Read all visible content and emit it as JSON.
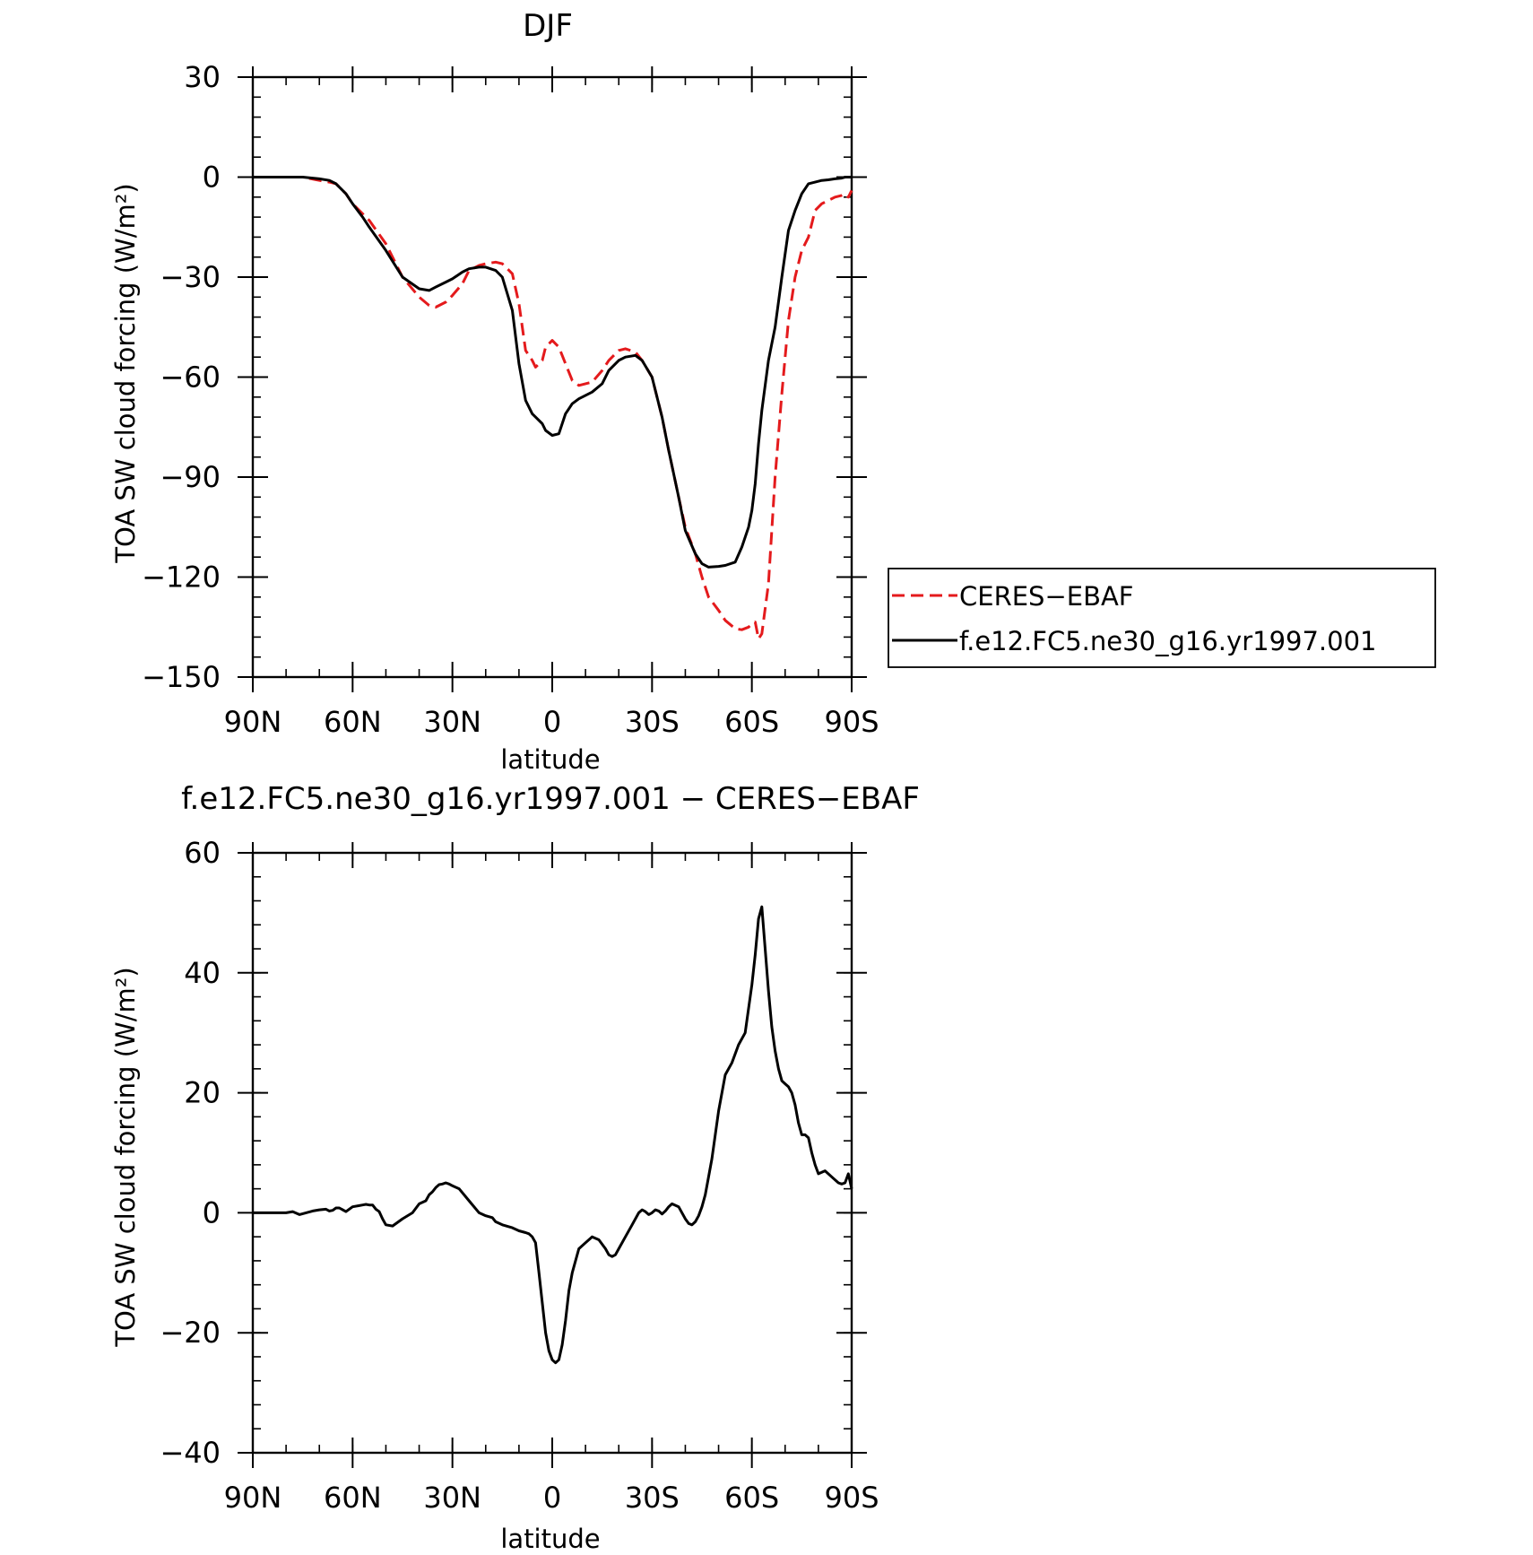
{
  "chart_data": [
    {
      "type": "line",
      "title": "DJF",
      "xlabel": "latitude",
      "ylabel": "TOA SW cloud forcing (W/m²)",
      "xlim": [
        90,
        -90
      ],
      "ylim": [
        -150,
        30
      ],
      "xticks": [
        90,
        60,
        30,
        0,
        -30,
        -60,
        -90
      ],
      "xticklabels": [
        "90N",
        "60N",
        "30N",
        "0",
        "30S",
        "60S",
        "90S"
      ],
      "yticks": [
        30,
        0,
        -30,
        -60,
        -90,
        -120,
        -150
      ],
      "yticklabels": [
        "30",
        "0",
        "−30",
        "−60",
        "−90",
        "−120",
        "−150"
      ],
      "legend": "right",
      "series": [
        {
          "name": "CERES−EBAF",
          "color": "#e41a1c",
          "dash": "dashed",
          "x": [
            90,
            85,
            80,
            75,
            70,
            67,
            65,
            62,
            60,
            57,
            55,
            50,
            45,
            40,
            37,
            35,
            32,
            30,
            27,
            25,
            22,
            20,
            17,
            15,
            12,
            10,
            8,
            6,
            5,
            3,
            2,
            0,
            -2,
            -4,
            -6,
            -8,
            -10,
            -12,
            -15,
            -17,
            -20,
            -22,
            -25,
            -27,
            -30,
            -33,
            -35,
            -38,
            -40,
            -43,
            -45,
            -47,
            -50,
            -52,
            -55,
            -57,
            -59,
            -60,
            -61,
            -62,
            -63,
            -65,
            -67,
            -69,
            -71,
            -73,
            -75,
            -77,
            -79,
            -81,
            -83,
            -85,
            -87,
            -88,
            -89,
            -90
          ],
          "y": [
            0,
            0,
            0,
            0,
            -1,
            -1.5,
            -2,
            -5,
            -8,
            -11,
            -13,
            -20,
            -30,
            -36,
            -38.5,
            -39,
            -37.5,
            -35.5,
            -32,
            -28,
            -26.5,
            -26,
            -25.5,
            -26,
            -29,
            -38,
            -52,
            -55,
            -57,
            -55,
            -51,
            -49,
            -51,
            -56,
            -61,
            -62.5,
            -62,
            -61.5,
            -58,
            -55,
            -52,
            -51.5,
            -52.5,
            -55,
            -60,
            -72,
            -82,
            -96,
            -105,
            -113,
            -120,
            -126,
            -130,
            -133,
            -135.5,
            -135.8,
            -135,
            -134,
            -133.5,
            -138.5,
            -137,
            -122,
            -90,
            -65,
            -43,
            -30,
            -22,
            -18,
            -10,
            -8,
            -7,
            -6,
            -5.5,
            -5,
            -6,
            -4
          ]
        },
        {
          "name": "f.e12.FC5.ne30_g16.yr1997.001",
          "color": "#000000",
          "dash": "solid",
          "x": [
            90,
            85,
            80,
            75,
            70,
            67,
            65,
            62,
            60,
            57,
            55,
            50,
            45,
            40,
            37,
            35,
            32,
            30,
            27,
            25,
            22,
            20,
            17,
            15,
            12,
            10,
            8,
            6,
            5,
            3,
            2,
            0,
            -2,
            -4,
            -6,
            -8,
            -10,
            -12,
            -15,
            -17,
            -20,
            -22,
            -25,
            -27,
            -30,
            -33,
            -35,
            -38,
            -40,
            -43,
            -45,
            -47,
            -50,
            -52,
            -55,
            -57,
            -59,
            -60,
            -61,
            -62,
            -63,
            -65,
            -67,
            -69,
            -71,
            -73,
            -75,
            -77,
            -79,
            -81,
            -83,
            -85,
            -87,
            -88,
            -89,
            -90
          ],
          "y": [
            0,
            0,
            0,
            0,
            -0.5,
            -1,
            -2,
            -5,
            -8,
            -12,
            -15,
            -22,
            -30,
            -33.5,
            -34,
            -33,
            -31.5,
            -30.5,
            -28.5,
            -27.5,
            -27,
            -27,
            -28,
            -30,
            -40,
            -56,
            -67,
            -71,
            -72,
            -74,
            -76,
            -77.5,
            -77,
            -71,
            -68,
            -66.5,
            -65.5,
            -64.5,
            -62,
            -58,
            -55,
            -54,
            -53.5,
            -55,
            -60,
            -72,
            -82,
            -96,
            -106,
            -113,
            -116,
            -117,
            -116.8,
            -116.5,
            -115.5,
            -111,
            -105,
            -100,
            -92,
            -80,
            -70,
            -55,
            -45,
            -30,
            -16,
            -10,
            -5,
            -2,
            -1.5,
            -1,
            -0.8,
            -0.5,
            -0.3,
            0,
            0,
            0
          ]
        }
      ]
    },
    {
      "type": "line",
      "title": "f.e12.FC5.ne30_g16.yr1997.001 − CERES−EBAF",
      "xlabel": "latitude",
      "ylabel": "TOA SW cloud forcing (W/m²)",
      "xlim": [
        90,
        -90
      ],
      "ylim": [
        -40,
        60
      ],
      "xticks": [
        90,
        60,
        30,
        0,
        -30,
        -60,
        -90
      ],
      "xticklabels": [
        "90N",
        "60N",
        "30N",
        "0",
        "30S",
        "60S",
        "90S"
      ],
      "yticks": [
        60,
        40,
        20,
        0,
        -20,
        -40
      ],
      "yticklabels": [
        "60",
        "40",
        "20",
        "0",
        "−20",
        "−40"
      ],
      "series": [
        {
          "color": "#000000",
          "dash": "solid",
          "x": [
            90,
            85,
            80,
            78,
            76,
            72,
            70,
            68,
            67,
            66,
            65,
            64,
            62,
            60,
            58,
            57,
            56,
            55,
            54,
            53,
            52,
            51,
            50,
            48,
            45,
            42,
            40,
            38,
            37,
            36,
            35,
            34,
            33,
            32,
            31,
            30,
            28,
            25,
            22,
            20,
            18,
            17,
            15,
            12,
            10,
            8,
            7,
            6,
            5,
            4,
            3,
            2,
            1,
            0,
            -1,
            -2,
            -3,
            -4,
            -5,
            -6,
            -7,
            -8,
            -10,
            -12,
            -14,
            -16,
            -17,
            -18,
            -19,
            -20,
            -22,
            -24,
            -26,
            -27,
            -28,
            -29,
            -30,
            -31,
            -32,
            -33,
            -34,
            -35,
            -36,
            -38,
            -40,
            -41,
            -42,
            -43,
            -44,
            -45,
            -46,
            -47,
            -48,
            -50,
            -52,
            -54,
            -56,
            -58,
            -60,
            -61,
            -62,
            -63,
            -64,
            -65,
            -66,
            -67,
            -68,
            -69,
            -70,
            -71,
            -72,
            -73,
            -74,
            -75,
            -76,
            -77,
            -78,
            -79,
            -80,
            -82,
            -84,
            -86,
            -87,
            -88,
            -89,
            -90
          ],
          "y": [
            0,
            0,
            0,
            0.2,
            -0.3,
            0.3,
            0.5,
            0.6,
            0.3,
            0.4,
            0.8,
            0.8,
            0.2,
            1,
            1.2,
            1.3,
            1.4,
            1.3,
            1.3,
            0.6,
            0.2,
            -1,
            -2,
            -2.2,
            -1,
            0,
            1.5,
            2,
            3,
            3.5,
            4.2,
            4.7,
            4.8,
            5,
            4.8,
            4.5,
            4,
            2,
            0,
            -0.5,
            -0.8,
            -1.5,
            -2,
            -2.5,
            -3,
            -3.3,
            -3.5,
            -4,
            -5,
            -10,
            -15,
            -20,
            -23,
            -24.5,
            -25,
            -24.5,
            -22,
            -18,
            -13,
            -10,
            -8,
            -6,
            -5,
            -4,
            -4.5,
            -6,
            -7,
            -7.3,
            -7,
            -6,
            -4,
            -2,
            0,
            0.5,
            0.2,
            -0.3,
            0,
            0.5,
            0.3,
            -0.2,
            0.3,
            1,
            1.5,
            1,
            -1,
            -1.8,
            -2,
            -1.5,
            -0.5,
            1,
            3,
            6,
            9,
            17,
            23,
            25,
            28,
            30,
            38,
            43,
            49,
            51,
            44,
            37,
            31,
            27,
            24,
            22,
            21.5,
            21,
            20,
            18,
            15,
            13,
            13,
            12.5,
            10,
            8,
            6.5,
            7,
            6,
            5,
            4.8,
            5,
            6.5,
            4
          ]
        }
      ]
    }
  ]
}
